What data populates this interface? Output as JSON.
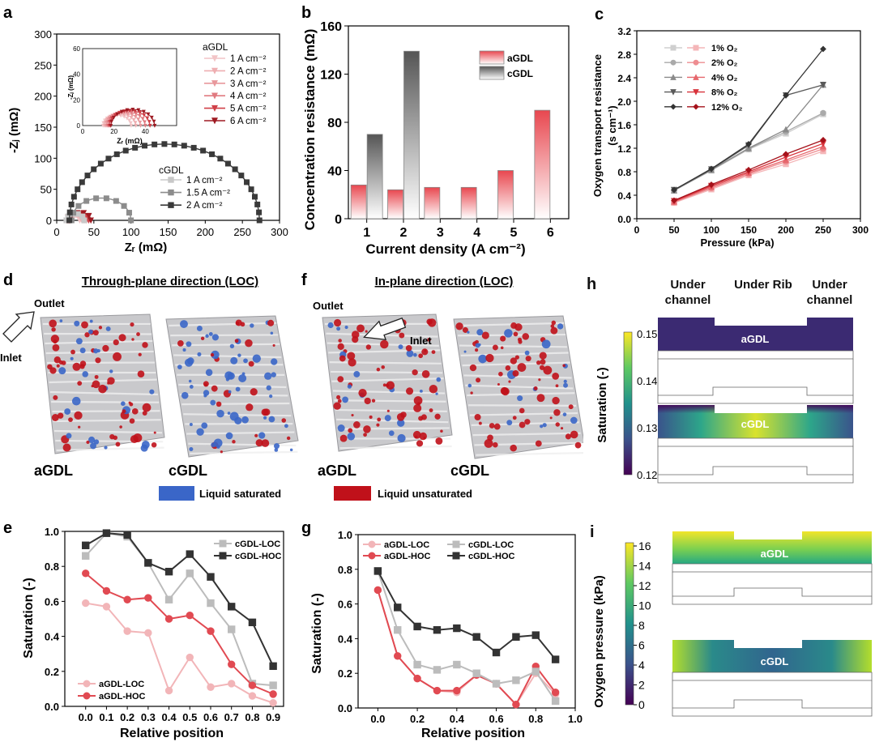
{
  "panels": {
    "a": {
      "label": "a",
      "xlabel": "Zᵣ (mΩ)",
      "ylabel": "-Zⱼ (mΩ)",
      "xlim": [
        0,
        300
      ],
      "ylim": [
        0,
        300
      ],
      "xticks": [
        "0",
        "50",
        "100",
        "150",
        "200",
        "250",
        "300"
      ],
      "yticks": [
        "0",
        "50",
        "100",
        "150",
        "200",
        "250",
        "300"
      ],
      "legend_group1": "aGDL",
      "legend_group2": "cGDL",
      "inset": {
        "xlabel": "Zᵣ (mΩ)",
        "ylabel": "-Zⱼ (mΩ)",
        "yticks": [
          "0",
          "20",
          "40",
          "60"
        ],
        "xticks": [
          "0",
          "20",
          "40"
        ]
      }
    },
    "b": {
      "label": "b",
      "xlabel": "Current density (A cm⁻²)",
      "ylabel": "Concentration resistance  (mΩ)",
      "yticks": [
        "0",
        "40",
        "80",
        "120",
        "160"
      ],
      "xticks": [
        "1",
        "2",
        "3",
        "4",
        "5",
        "6"
      ],
      "legend": [
        "aGDL",
        "cGDL"
      ]
    },
    "c": {
      "label": "c",
      "xlabel": "Pressure (kPa)",
      "ylabel": "Oxygen transport resistance",
      "ylabel2": "(s cm⁻¹)",
      "yticks": [
        "0.0",
        "0.4",
        "0.8",
        "1.2",
        "1.6",
        "2.0",
        "2.4",
        "2.8",
        "3.2"
      ],
      "xticks": [
        "0",
        "50",
        "100",
        "150",
        "200",
        "250",
        "300"
      ]
    },
    "d": {
      "label": "d",
      "title": "Through-plane direction (LOC)",
      "outlet": "Outlet",
      "inlet": "Inlet",
      "left": "aGDL",
      "right": "cGDL"
    },
    "f": {
      "label": "f",
      "title": "In-plane direction (LOC)",
      "outlet": "Outlet",
      "inlet": "Inlet",
      "left": "aGDL",
      "right": "cGDL"
    },
    "legend_df": {
      "saturated": "Liquid saturated",
      "unsaturated": "Liquid unsaturated",
      "sat_color": "#3a66c8",
      "unsat_color": "#c0111a"
    },
    "h": {
      "label": "h",
      "col1": "Under channel",
      "col2": "Under Rib",
      "col3": "Under channel",
      "cbar_label": "Saturation (-)",
      "cbar_ticks": [
        "0.15",
        "0.14",
        "0.13",
        "0.12"
      ],
      "top_name": "aGDL",
      "bottom_name": "cGDL"
    },
    "e": {
      "label": "e",
      "xlabel": "Relative position",
      "ylabel": "Saturation (-)",
      "xticks": [
        "0.0",
        "0.1",
        "0.2",
        "0.3",
        "0.4",
        "0.5",
        "0.6",
        "0.7",
        "0.8",
        "0.9"
      ],
      "yticks": [
        "0.0",
        "0.2",
        "0.4",
        "0.6",
        "0.8",
        "1.0"
      ]
    },
    "g": {
      "label": "g",
      "xlabel": "Relative position",
      "ylabel": "Saturation (-)",
      "xticks": [
        "0.0",
        "0.2",
        "0.4",
        "0.6",
        "0.8",
        "1.0"
      ],
      "yticks": [
        "0.0",
        "0.2",
        "0.4",
        "0.6",
        "0.8",
        "1.0"
      ]
    },
    "i": {
      "label": "i",
      "cbar_label": "Oxygen pressure (kPa)",
      "cbar_ticks": [
        "16",
        "14",
        "12",
        "10",
        "8",
        "6",
        "4",
        "2",
        "0"
      ],
      "top_name": "aGDL",
      "bottom_name": "cGDL"
    }
  },
  "chart_data": [
    {
      "panel": "a",
      "type": "scatter",
      "series": [
        {
          "name": "1 A cm⁻²",
          "group": "aGDL",
          "color": "#f2c4c6",
          "center": 22,
          "radius": 9
        },
        {
          "name": "2 A cm⁻²",
          "group": "aGDL",
          "color": "#eeaeb1",
          "center": 24,
          "radius": 10
        },
        {
          "name": "3 A cm⁻²",
          "group": "aGDL",
          "color": "#e8989c",
          "center": 26,
          "radius": 11
        },
        {
          "name": "4 A cm⁻²",
          "group": "aGDL",
          "color": "#e07a80",
          "center": 28,
          "radius": 12
        },
        {
          "name": "5 A cm⁻²",
          "group": "aGDL",
          "color": "#d04048",
          "center": 30,
          "radius": 13
        },
        {
          "name": "6 A cm⁻²",
          "group": "aGDL",
          "color": "#9e1a22",
          "center": 32,
          "radius": 14
        },
        {
          "name": "1 A cm⁻²",
          "group": "cGDL",
          "color": "#c8c8c8",
          "center": 25,
          "radius": 12
        },
        {
          "name": "1.5 A cm⁻²",
          "group": "cGDL",
          "color": "#8c8c8c",
          "center": 60,
          "radius": 40
        },
        {
          "name": "2 A cm⁻²",
          "group": "cGDL",
          "color": "#3a3a3a",
          "center": 145,
          "radius": 128
        }
      ]
    },
    {
      "panel": "b",
      "type": "bar",
      "categories": [
        "1",
        "2",
        "3",
        "4",
        "5",
        "6"
      ],
      "series": [
        {
          "name": "aGDL",
          "values": [
            28,
            24,
            26,
            26,
            40,
            90
          ],
          "color": "#e8474f"
        },
        {
          "name": "cGDL",
          "values": [
            70,
            139,
            null,
            null,
            null,
            null
          ],
          "color": "#555555"
        }
      ],
      "ylim": [
        0,
        160
      ]
    },
    {
      "panel": "c",
      "type": "line",
      "x": [
        50,
        100,
        150,
        200,
        250
      ],
      "xlim": [
        0,
        300
      ],
      "ylim": [
        0,
        3.2
      ],
      "series": [
        {
          "name": "1% O₂",
          "group": "cGDL",
          "color": "#cfcfcf",
          "marker": "square",
          "values": [
            0.48,
            0.82,
            1.18,
            1.45,
            1.78
          ]
        },
        {
          "name": "2% O₂",
          "group": "cGDL",
          "color": "#aaaaaa",
          "marker": "circle",
          "values": [
            0.48,
            0.83,
            1.19,
            1.48,
            1.8
          ]
        },
        {
          "name": "4% O₂",
          "group": "cGDL",
          "color": "#8a8a8a",
          "marker": "triangle-up",
          "values": [
            0.48,
            0.83,
            1.2,
            1.52,
            2.28
          ]
        },
        {
          "name": "8% O₂",
          "group": "cGDL",
          "color": "#5a5a5a",
          "marker": "triangle-down",
          "values": [
            0.49,
            0.84,
            1.25,
            2.1,
            2.28
          ]
        },
        {
          "name": "12% O₂",
          "group": "cGDL",
          "color": "#333333",
          "marker": "diamond",
          "values": [
            0.49,
            0.85,
            1.27,
            2.1,
            2.89
          ]
        },
        {
          "name": "1% O₂",
          "group": "aGDL",
          "color": "#f4b6b8",
          "marker": "square",
          "values": [
            0.27,
            0.5,
            0.74,
            0.93,
            1.15
          ]
        },
        {
          "name": "2% O₂",
          "group": "aGDL",
          "color": "#ee8d91",
          "marker": "circle",
          "values": [
            0.28,
            0.52,
            0.76,
            0.97,
            1.19
          ]
        },
        {
          "name": "4% O₂",
          "group": "aGDL",
          "color": "#e6676d",
          "marker": "triangle-up",
          "values": [
            0.29,
            0.54,
            0.78,
            1.0,
            1.23
          ]
        },
        {
          "name": "8% O₂",
          "group": "aGDL",
          "color": "#d8323b",
          "marker": "triangle-down",
          "values": [
            0.3,
            0.56,
            0.8,
            1.05,
            1.28
          ]
        },
        {
          "name": "12% O₂",
          "group": "aGDL",
          "color": "#a5121b",
          "marker": "diamond",
          "values": [
            0.31,
            0.58,
            0.83,
            1.1,
            1.34
          ]
        }
      ]
    },
    {
      "panel": "e",
      "type": "line",
      "x": [
        0,
        0.1,
        0.2,
        0.3,
        0.4,
        0.5,
        0.6,
        0.7,
        0.8,
        0.9
      ],
      "xlim": [
        -0.1,
        0.95
      ],
      "ylim": [
        0,
        1.0
      ],
      "series": [
        {
          "name": "cGDL-LOC",
          "color": "#bcbcbc",
          "marker": "square",
          "values": [
            0.86,
            0.99,
            0.97,
            0.82,
            0.61,
            0.76,
            0.59,
            0.44,
            0.13,
            0.12
          ]
        },
        {
          "name": "cGDL-HOC",
          "color": "#333333",
          "marker": "square",
          "values": [
            0.92,
            0.99,
            0.98,
            0.82,
            0.77,
            0.87,
            0.74,
            0.57,
            0.48,
            0.23
          ]
        },
        {
          "name": "aGDL-LOC",
          "color": "#f2b5b8",
          "marker": "circle",
          "values": [
            0.59,
            0.57,
            0.43,
            0.42,
            0.09,
            0.28,
            0.11,
            0.13,
            0.06,
            0.02
          ]
        },
        {
          "name": "aGDL-HOC",
          "color": "#e14a52",
          "marker": "circle",
          "values": [
            0.76,
            0.66,
            0.61,
            0.62,
            0.5,
            0.52,
            0.43,
            0.24,
            0.12,
            0.07
          ]
        }
      ]
    },
    {
      "panel": "g",
      "type": "line",
      "x": [
        0,
        0.1,
        0.2,
        0.3,
        0.4,
        0.5,
        0.6,
        0.7,
        0.8,
        0.9
      ],
      "xlim": [
        -0.1,
        1.0
      ],
      "ylim": [
        0,
        1.0
      ],
      "series": [
        {
          "name": "aGDL-LOC",
          "color": "#f2b5b8",
          "marker": "circle",
          "values": [
            0.68,
            0.3,
            0.17,
            0.1,
            0.09,
            0.19,
            0.14,
            0.02,
            0.2,
            0.08
          ]
        },
        {
          "name": "aGDL-HOC",
          "color": "#e14a52",
          "marker": "circle",
          "values": [
            0.68,
            0.3,
            0.17,
            0.1,
            0.1,
            0.19,
            0.14,
            0.02,
            0.24,
            0.09
          ]
        },
        {
          "name": "cGDL-LOC",
          "color": "#bcbcbc",
          "marker": "square",
          "values": [
            0.79,
            0.45,
            0.25,
            0.22,
            0.25,
            0.2,
            0.14,
            0.16,
            0.21,
            0.04
          ]
        },
        {
          "name": "cGDL-HOC",
          "color": "#333333",
          "marker": "square",
          "values": [
            0.79,
            0.58,
            0.47,
            0.45,
            0.46,
            0.41,
            0.32,
            0.41,
            0.42,
            0.28
          ]
        }
      ]
    }
  ]
}
